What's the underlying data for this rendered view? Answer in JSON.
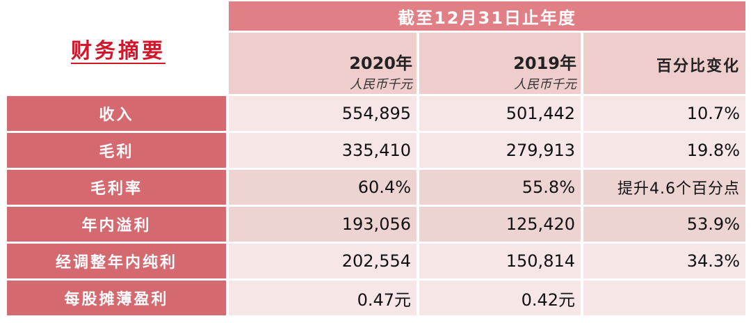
{
  "title": "财务摘要",
  "period_header": "截至12月31日止年度",
  "columns": [
    {
      "year": "2020年",
      "unit": "人民币千元"
    },
    {
      "year": "2019年",
      "unit": "人民币千元"
    },
    {
      "label": "百分比变化"
    }
  ],
  "rows": [
    {
      "label": "收入",
      "v2020": "554,895",
      "v2019": "501,442",
      "change": "10.7%"
    },
    {
      "label": "毛利",
      "v2020": "335,410",
      "v2019": "279,913",
      "change": "19.8%"
    },
    {
      "label": "毛利率",
      "v2020": "60.4%",
      "v2019": "55.8%",
      "change": "提升4.6个百分点"
    },
    {
      "label": "年内溢利",
      "v2020": "193,056",
      "v2019": "125,420",
      "change": "53.9%"
    },
    {
      "label": "经调整年内纯利",
      "v2020": "202,554",
      "v2019": "150,814",
      "change": "34.3%"
    },
    {
      "label": "每股摊薄盈利",
      "v2020": "0.47元",
      "v2019": "0.42元",
      "change": ""
    }
  ],
  "colors": {
    "title": "#d4162a",
    "header_bar": "#e07f86",
    "row_label": "#d46a70",
    "cell_dark": "#eed3d3",
    "cell_light": "#f7e6e6"
  }
}
